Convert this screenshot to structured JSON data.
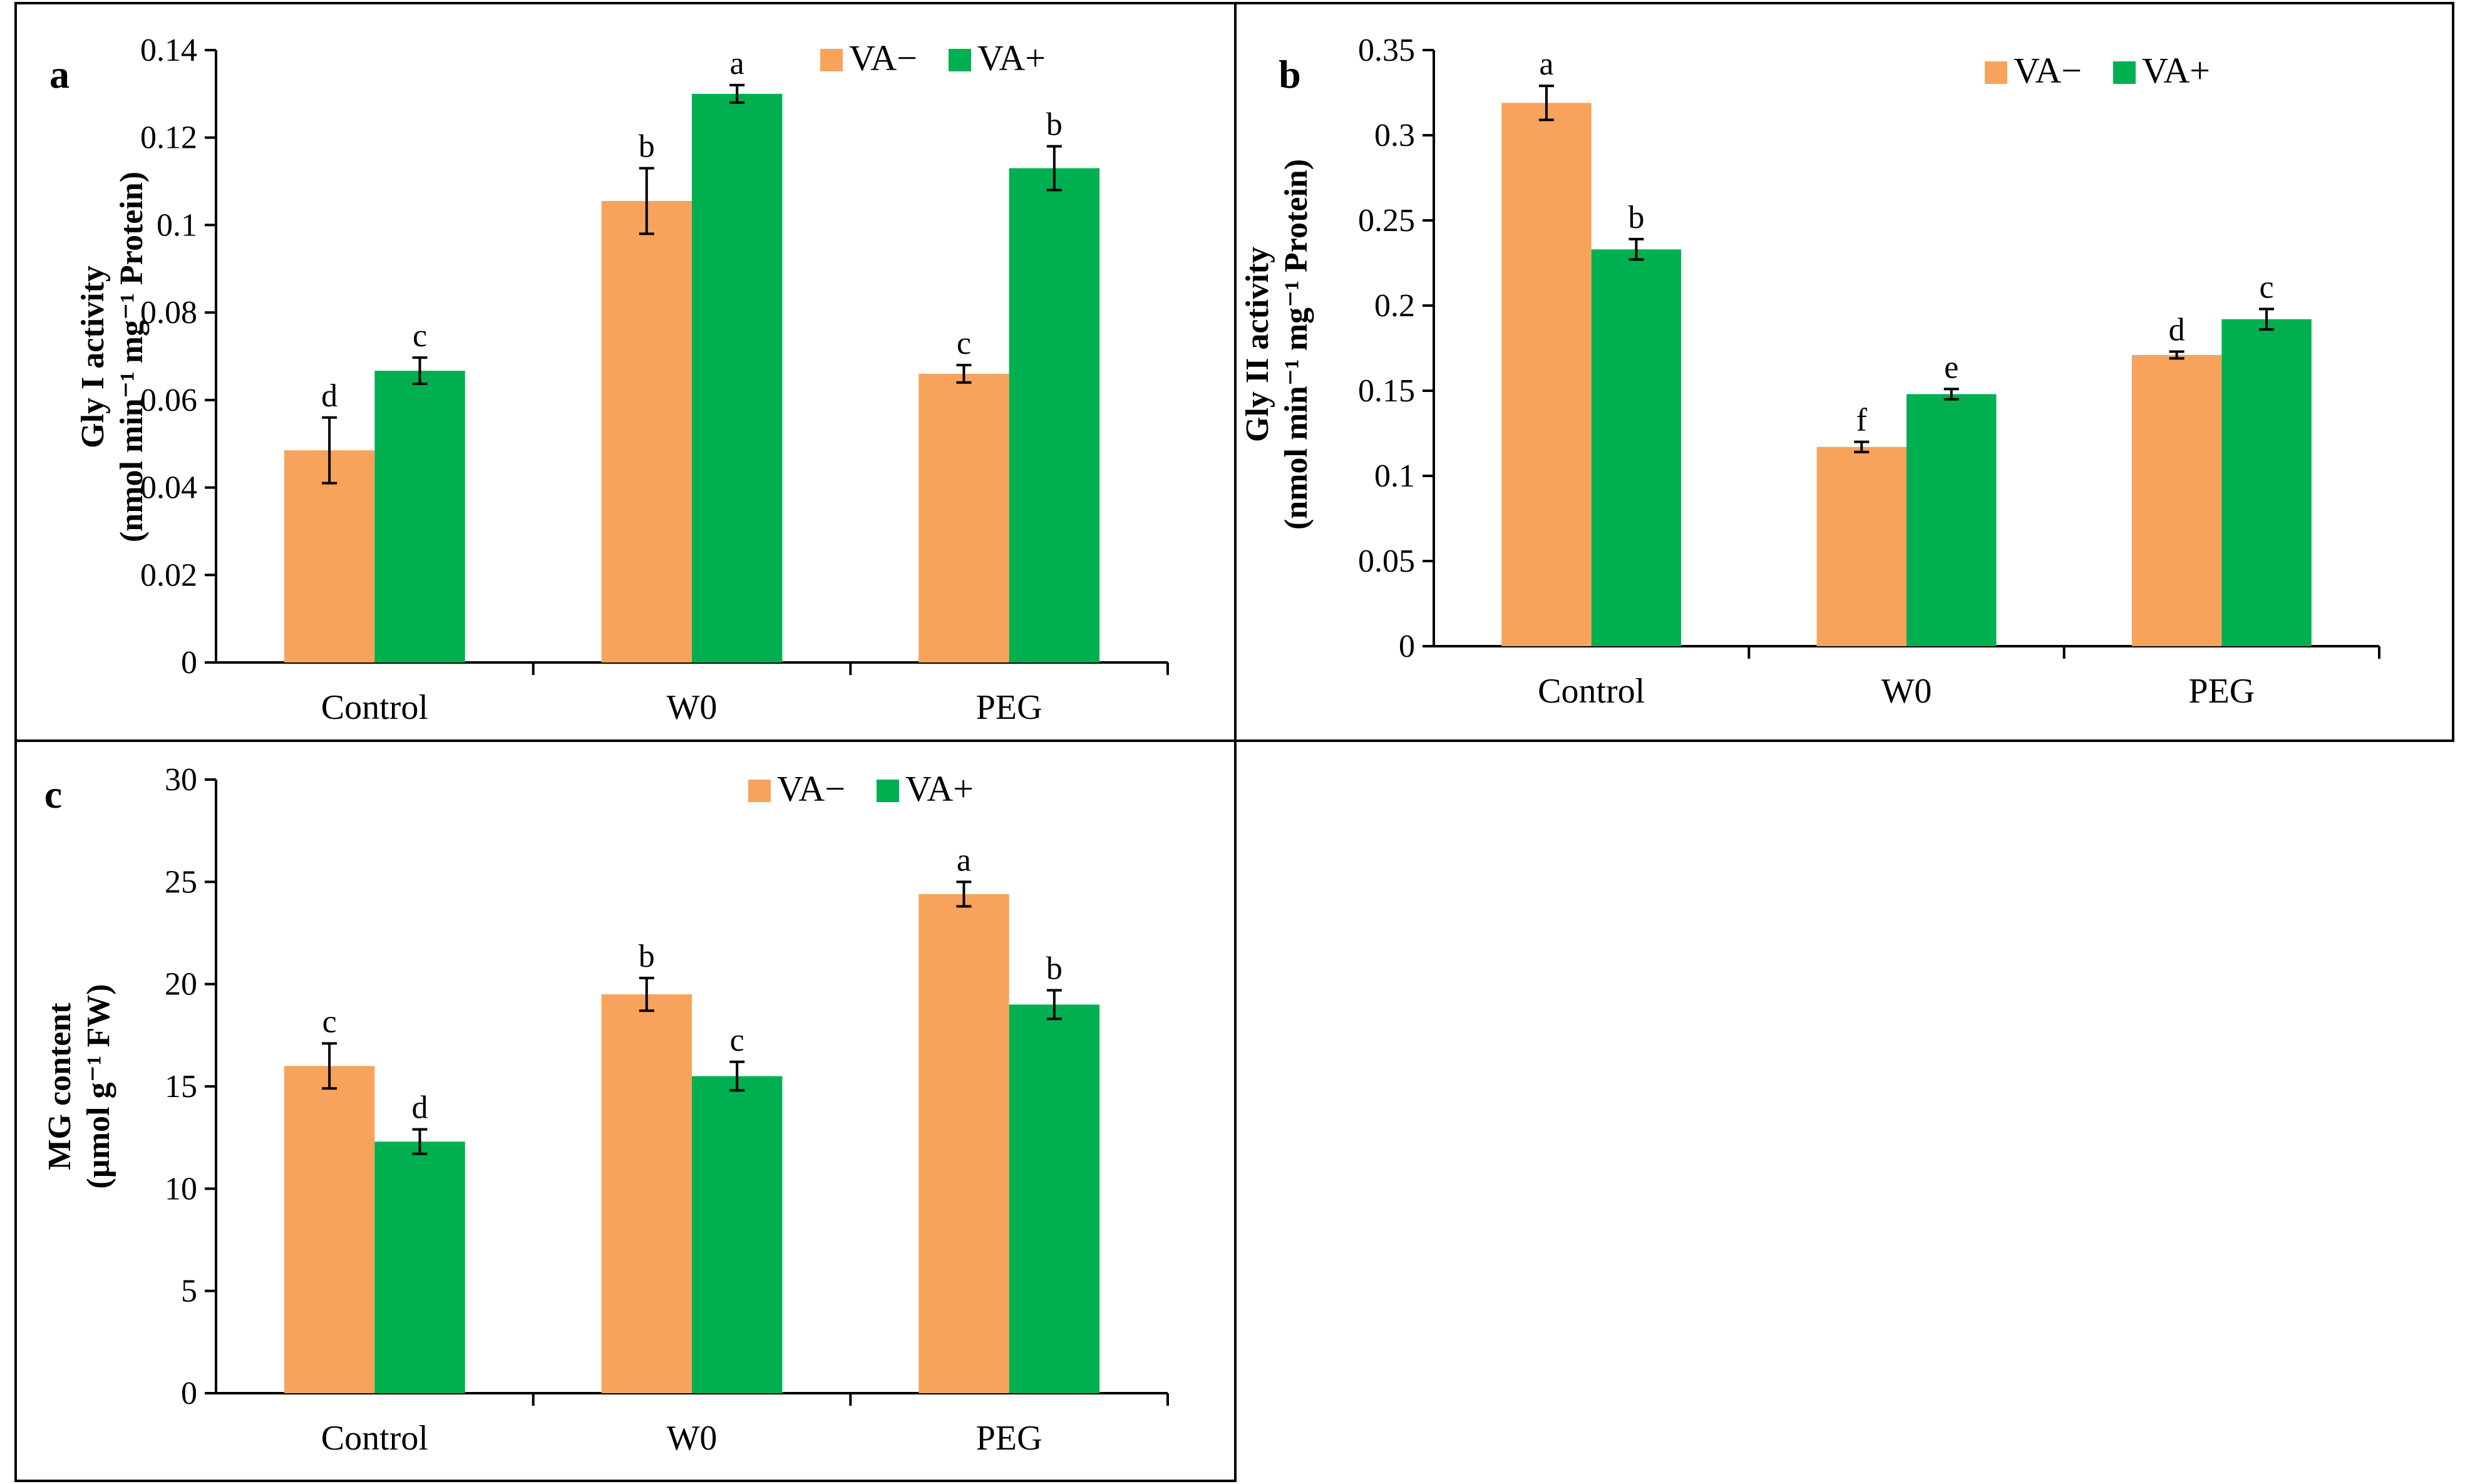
{
  "colors": {
    "va_minus": "#F7A35C",
    "va_plus": "#00B050",
    "axis": "#000000",
    "frame": "#000000"
  },
  "chart_data": [
    {
      "type": "bar",
      "panel": "a",
      "ylabel_line1": "Gly I activity",
      "ylabel_line2": "(nmol min⁻¹ mg⁻¹ Protein)",
      "ylim": [
        0,
        0.14
      ],
      "yticks": [
        0,
        0.02,
        0.04,
        0.06,
        0.08,
        0.1,
        0.12,
        0.14
      ],
      "ytick_labels": [
        "0",
        "0.02",
        "0.04",
        "0.06",
        "0.08",
        "0.1",
        "0.12",
        "0.14"
      ],
      "categories": [
        "Control",
        "W0",
        "PEG"
      ],
      "series": [
        {
          "name": "VA−",
          "values": [
            0.0485,
            0.1055,
            0.066
          ],
          "errors": [
            0.0075,
            0.0075,
            0.002
          ],
          "letters": [
            "d",
            "b",
            "c"
          ]
        },
        {
          "name": "VA+",
          "values": [
            0.0667,
            0.13,
            0.113
          ],
          "errors": [
            0.003,
            0.002,
            0.005
          ],
          "letters": [
            "c",
            "a",
            "b"
          ]
        }
      ],
      "legend_position": "top-right"
    },
    {
      "type": "bar",
      "panel": "b",
      "ylabel_line1": "Gly II activity",
      "ylabel_line2": "(nmol min⁻¹ mg⁻¹ Protein)",
      "ylim": [
        0,
        0.35
      ],
      "yticks": [
        0,
        0.05,
        0.1,
        0.15,
        0.2,
        0.25,
        0.3,
        0.35
      ],
      "ytick_labels": [
        "0",
        "0.05",
        "0.1",
        "0.15",
        "0.2",
        "0.25",
        "0.3",
        "0.35"
      ],
      "categories": [
        "Control",
        "W0",
        "PEG"
      ],
      "series": [
        {
          "name": "VA−",
          "values": [
            0.319,
            0.117,
            0.171
          ],
          "errors": [
            0.01,
            0.003,
            0.002
          ],
          "letters": [
            "a",
            "f",
            "d"
          ]
        },
        {
          "name": "VA+",
          "values": [
            0.233,
            0.148,
            0.192
          ],
          "errors": [
            0.006,
            0.003,
            0.006
          ],
          "letters": [
            "b",
            "e",
            "c"
          ]
        }
      ],
      "legend_position": "top-right"
    },
    {
      "type": "bar",
      "panel": "c",
      "ylabel_line1": "MG content",
      "ylabel_line2": "(µmol g⁻¹ FW)",
      "ylim": [
        0,
        30
      ],
      "yticks": [
        0,
        5,
        10,
        15,
        20,
        25,
        30
      ],
      "ytick_labels": [
        "0",
        "5",
        "10",
        "15",
        "20",
        "25",
        "30"
      ],
      "categories": [
        "Control",
        "W0",
        "PEG"
      ],
      "series": [
        {
          "name": "VA−",
          "values": [
            16.0,
            19.5,
            24.4
          ],
          "errors": [
            1.1,
            0.8,
            0.6
          ],
          "letters": [
            "c",
            "b",
            "a"
          ]
        },
        {
          "name": "VA+",
          "values": [
            12.3,
            15.5,
            19.0
          ],
          "errors": [
            0.6,
            0.7,
            0.7
          ],
          "letters": [
            "d",
            "c",
            "b"
          ]
        }
      ],
      "legend_position": "top-center"
    }
  ]
}
